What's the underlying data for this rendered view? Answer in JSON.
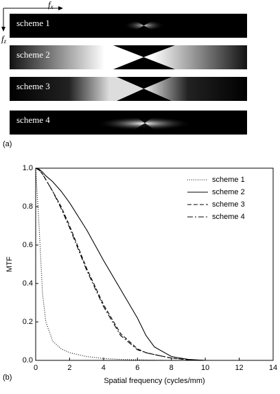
{
  "panel_a": {
    "label": "(a)",
    "fx": {
      "symbol": "f",
      "subscript": "x"
    },
    "fz": {
      "symbol": "f",
      "subscript": "z"
    },
    "strips": [
      "scheme 1",
      "scheme 2",
      "scheme 3",
      "scheme 4"
    ]
  },
  "chart_data": {
    "type": "line",
    "label": "(b)",
    "x_label": "Spatial frequency (cycles/mm)",
    "y_label": "MTF",
    "x": [
      0,
      0.2,
      0.4,
      0.6,
      1,
      1.5,
      2,
      3,
      4,
      5,
      6,
      6.5,
      7,
      8,
      9,
      10
    ],
    "series": [
      {
        "name": "scheme 1",
        "color": "#000000",
        "dash": "1,2",
        "values": [
          1,
          0.7,
          0.35,
          0.2,
          0.1,
          0.06,
          0.04,
          0.02,
          0.01,
          0.005,
          0.003,
          0.002,
          0.001,
          0,
          0,
          0
        ]
      },
      {
        "name": "scheme 2",
        "color": "#000000",
        "dash": "none",
        "values": [
          1,
          0.995,
          0.98,
          0.96,
          0.93,
          0.88,
          0.82,
          0.68,
          0.52,
          0.37,
          0.22,
          0.13,
          0.07,
          0.02,
          0.005,
          0
        ]
      },
      {
        "name": "scheme 3",
        "color": "#000000",
        "dash": "6,3",
        "values": [
          1,
          0.99,
          0.97,
          0.94,
          0.88,
          0.8,
          0.7,
          0.48,
          0.29,
          0.14,
          0.06,
          0.04,
          0.03,
          0.012,
          0.003,
          0
        ]
      },
      {
        "name": "scheme 4",
        "color": "#000000",
        "dash": "8,3,2,3",
        "values": [
          1,
          0.99,
          0.97,
          0.94,
          0.88,
          0.79,
          0.69,
          0.47,
          0.28,
          0.13,
          0.055,
          0.04,
          0.03,
          0.012,
          0.003,
          0
        ]
      }
    ],
    "xlim": [
      0,
      14
    ],
    "xticks": [
      0,
      2,
      4,
      6,
      8,
      10,
      12,
      14
    ],
    "ylim": [
      0,
      1
    ],
    "yticks": [
      {
        "value": 0,
        "label": "0.0"
      },
      0.2,
      0.4,
      0.6,
      0.8,
      {
        "value": 1,
        "label": "1.0"
      }
    ],
    "legend": "upper right"
  }
}
